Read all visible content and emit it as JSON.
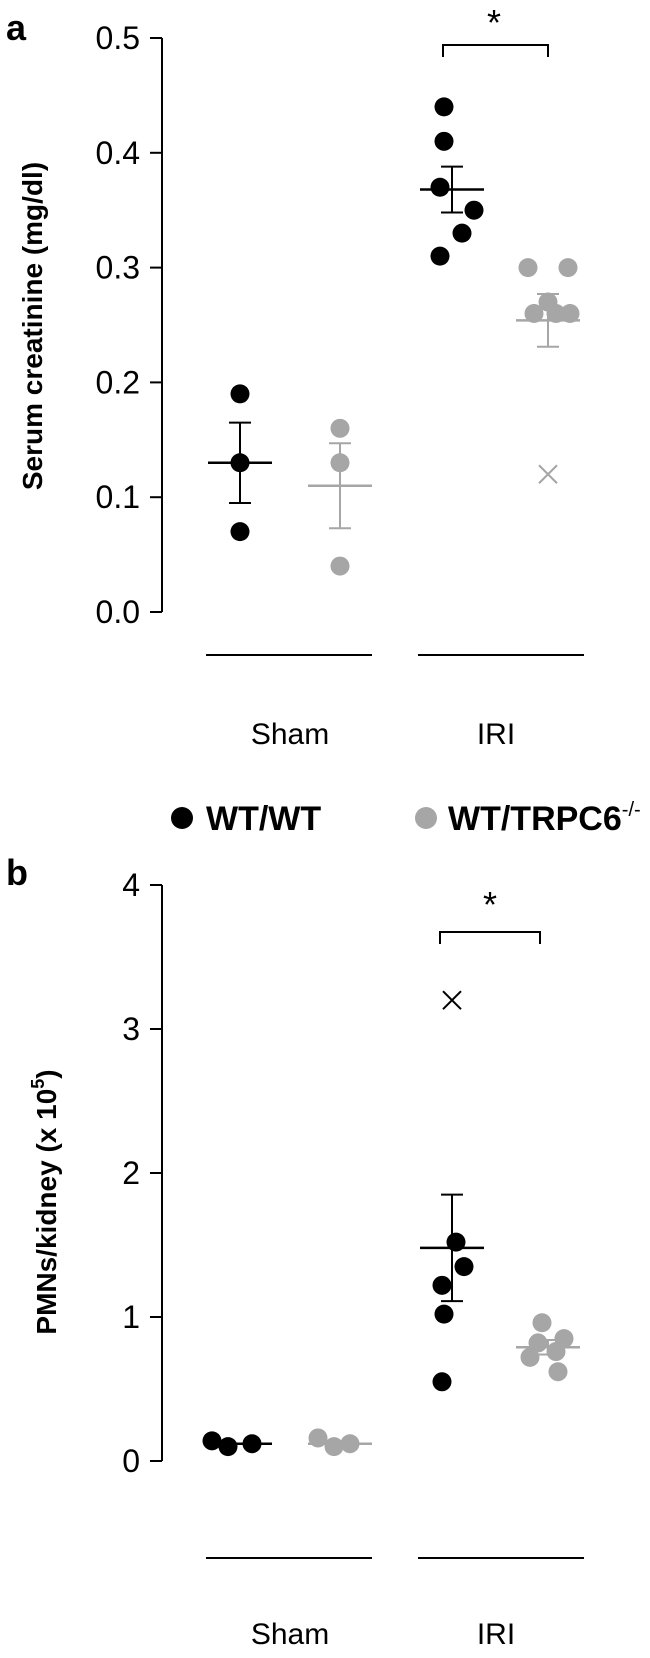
{
  "legend": {
    "wt_label": "WT/WT",
    "trpc_label": "WT/TRPC6",
    "trpc_superscript": "-/-"
  },
  "colors": {
    "wt": "#000000",
    "trpc": "#a6a6a6"
  },
  "chart_data": [
    {
      "type": "scatter",
      "panel": "a",
      "ylabel": "Serum creatinine (mg/dl)",
      "ylim": [
        0,
        0.5
      ],
      "yticks": [
        "0.0",
        "0.1",
        "0.2",
        "0.3",
        "0.4",
        "0.5"
      ],
      "groups": [
        "Sham",
        "IRI"
      ],
      "significance": "*",
      "series": [
        {
          "name": "WT/WT",
          "Sham": {
            "points": [
              0.19,
              0.13,
              0.07
            ],
            "mean": 0.13,
            "sem": 0.035,
            "outliers": []
          },
          "IRI": {
            "points": [
              0.44,
              0.41,
              0.37,
              0.35,
              0.33,
              0.31
            ],
            "mean": 0.368,
            "sem": 0.02,
            "outliers": []
          }
        },
        {
          "name": "WT/TRPC6-/-",
          "Sham": {
            "points": [
              0.16,
              0.13,
              0.04
            ],
            "mean": 0.11,
            "sem": 0.037,
            "outliers": []
          },
          "IRI": {
            "points": [
              0.3,
              0.3,
              0.27,
              0.26,
              0.26,
              0.26
            ],
            "mean": 0.254,
            "sem": 0.023,
            "outliers": [
              0.12
            ]
          }
        }
      ]
    },
    {
      "type": "scatter",
      "panel": "b",
      "ylabel": "PMNs/kidney (x 10",
      "ylabel_superscript": "5",
      "ylabel_suffix": ")",
      "ylim": [
        0,
        4
      ],
      "yticks": [
        "0",
        "1",
        "2",
        "3",
        "4"
      ],
      "groups": [
        "Sham",
        "IRI"
      ],
      "significance": "*",
      "series": [
        {
          "name": "WT/WT",
          "Sham": {
            "points": [
              0.14,
              0.1,
              0.12
            ],
            "mean": 0.12,
            "sem": 0.0,
            "outliers": []
          },
          "IRI": {
            "points": [
              1.52,
              1.35,
              1.22,
              1.02,
              0.55
            ],
            "mean": 1.48,
            "sem": 0.37,
            "outliers": [
              3.2
            ]
          }
        },
        {
          "name": "WT/TRPC6-/-",
          "Sham": {
            "points": [
              0.16,
              0.1,
              0.12
            ],
            "mean": 0.12,
            "sem": 0.0,
            "outliers": []
          },
          "IRI": {
            "points": [
              0.96,
              0.85,
              0.82,
              0.76,
              0.72,
              0.62
            ],
            "mean": 0.79,
            "sem": 0.05,
            "outliers": []
          }
        }
      ]
    }
  ]
}
